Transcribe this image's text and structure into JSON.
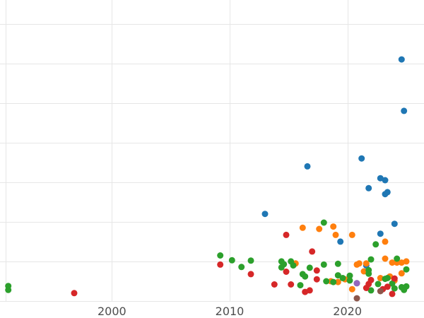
{
  "chart_data": {
    "type": "scatter",
    "title": "",
    "xlabel": "",
    "ylabel": "",
    "xlim": [
      1990.5,
      2026.5
    ],
    "ylim": [
      0,
      7.6
    ],
    "x_ticks": [
      2000,
      2010,
      2020
    ],
    "x_tick_labels": [
      "2000",
      "2010",
      "2020"
    ],
    "y_gridlines": [
      0,
      1,
      2,
      3,
      4,
      5,
      6,
      7
    ],
    "grid": true,
    "legend": "none",
    "series": [
      {
        "color": "#1f77b4",
        "points": [
          [
            2024.6,
            6.1
          ],
          [
            2024.8,
            4.8
          ],
          [
            2016.6,
            3.4
          ],
          [
            2021.2,
            3.6
          ],
          [
            2021.8,
            2.85
          ],
          [
            2022.8,
            3.1
          ],
          [
            2023.2,
            3.05
          ],
          [
            2023.4,
            2.75
          ],
          [
            2023.2,
            2.7
          ],
          [
            2013.0,
            2.2
          ],
          [
            2024.0,
            1.95
          ],
          [
            2022.8,
            1.7
          ],
          [
            2019.4,
            1.5
          ],
          [
            2021.6,
            0.9
          ]
        ]
      },
      {
        "color": "#ff7f0e",
        "points": [
          [
            2016.2,
            1.85
          ],
          [
            2017.6,
            1.82
          ],
          [
            2018.8,
            1.88
          ],
          [
            2019.0,
            1.67
          ],
          [
            2020.4,
            1.67
          ],
          [
            2023.2,
            1.5
          ],
          [
            2015.6,
            0.95
          ],
          [
            2020.8,
            0.92
          ],
          [
            2021.6,
            0.95
          ],
          [
            2023.2,
            1.07
          ],
          [
            2023.8,
            0.97
          ],
          [
            2024.2,
            0.97
          ],
          [
            2024.6,
            0.97
          ],
          [
            2025.0,
            1.0
          ],
          [
            2018.6,
            0.5
          ],
          [
            2019.2,
            0.48
          ],
          [
            2019.8,
            0.55
          ],
          [
            2020.4,
            0.3
          ],
          [
            2021.4,
            0.75
          ],
          [
            2022.8,
            0.58
          ],
          [
            2023.6,
            0.62
          ],
          [
            2024.0,
            0.52
          ],
          [
            2024.6,
            0.7
          ],
          [
            2021.0,
            0.95
          ]
        ]
      },
      {
        "color": "#2ca02c",
        "points": [
          [
            1991.2,
            0.38
          ],
          [
            1991.2,
            0.28
          ],
          [
            2009.2,
            1.15
          ],
          [
            2010.2,
            1.03
          ],
          [
            2011.0,
            0.86
          ],
          [
            2011.8,
            1.02
          ],
          [
            2014.4,
            1.0
          ],
          [
            2014.4,
            0.85
          ],
          [
            2014.6,
            0.93
          ],
          [
            2015.2,
            1.0
          ],
          [
            2015.4,
            0.9
          ],
          [
            2016.0,
            0.4
          ],
          [
            2016.2,
            0.68
          ],
          [
            2016.4,
            0.62
          ],
          [
            2016.8,
            0.84
          ],
          [
            2018.0,
            0.92
          ],
          [
            2018.0,
            1.98
          ],
          [
            2018.2,
            0.5
          ],
          [
            2018.8,
            0.48
          ],
          [
            2019.2,
            0.94
          ],
          [
            2019.2,
            0.65
          ],
          [
            2019.6,
            0.58
          ],
          [
            2020.2,
            0.64
          ],
          [
            2020.2,
            0.52
          ],
          [
            2020.8,
            0.45
          ],
          [
            2021.8,
            0.78
          ],
          [
            2021.8,
            0.69
          ],
          [
            2022.0,
            1.05
          ],
          [
            2022.0,
            0.27
          ],
          [
            2022.6,
            0.43
          ],
          [
            2022.4,
            1.43
          ],
          [
            2023.2,
            0.56
          ],
          [
            2023.4,
            0.58
          ],
          [
            2023.8,
            0.44
          ],
          [
            2024.0,
            0.32
          ],
          [
            2024.2,
            1.07
          ],
          [
            2024.6,
            0.35
          ],
          [
            2024.8,
            0.28
          ],
          [
            2025.0,
            0.8
          ],
          [
            2025.0,
            0.37
          ]
        ]
      },
      {
        "color": "#d62728",
        "points": [
          [
            1996.8,
            0.2
          ],
          [
            2009.2,
            0.92
          ],
          [
            2011.8,
            0.68
          ],
          [
            2013.8,
            0.42
          ],
          [
            2014.8,
            1.67
          ],
          [
            2014.8,
            0.74
          ],
          [
            2015.2,
            0.42
          ],
          [
            2016.4,
            0.23
          ],
          [
            2016.8,
            0.27
          ],
          [
            2017.0,
            1.25
          ],
          [
            2017.4,
            0.55
          ],
          [
            2017.4,
            0.77
          ],
          [
            2021.6,
            0.33
          ],
          [
            2021.8,
            0.43
          ],
          [
            2022.0,
            0.53
          ],
          [
            2023.0,
            0.3
          ],
          [
            2023.4,
            0.36
          ],
          [
            2023.8,
            0.18
          ],
          [
            2024.0,
            0.57
          ]
        ]
      },
      {
        "color": "#9467bd",
        "points": [
          [
            2020.8,
            0.45
          ]
        ]
      },
      {
        "color": "#8c564b",
        "points": [
          [
            2020.8,
            0.07
          ],
          [
            2022.8,
            0.25
          ]
        ]
      }
    ]
  }
}
